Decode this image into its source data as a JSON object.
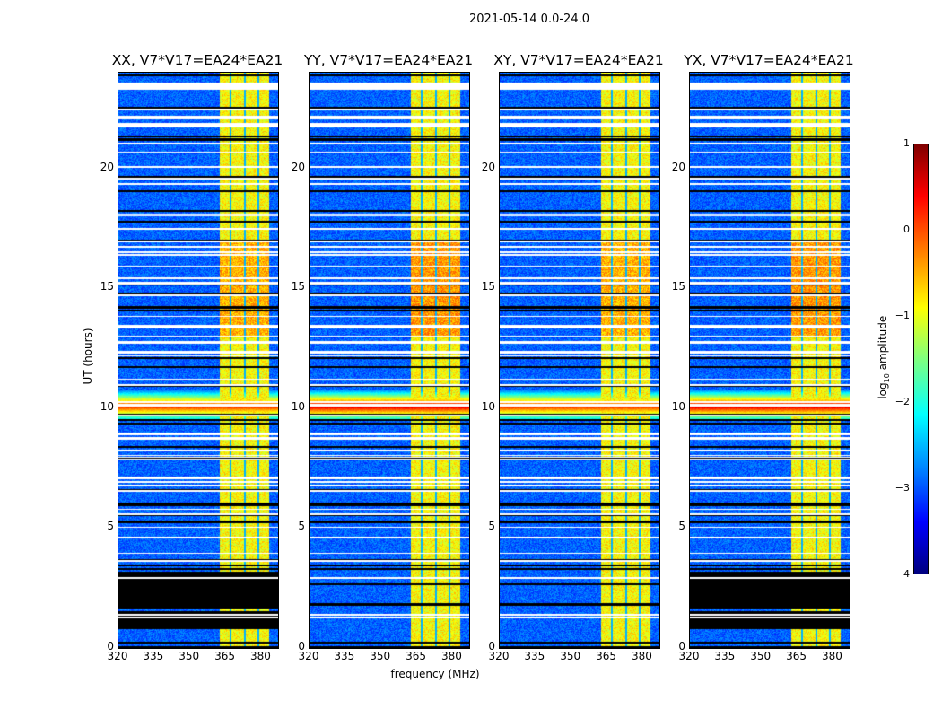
{
  "chart_data": {
    "type": "heatmap",
    "title": "2021-05-14 0.0-24.0",
    "xlabel": "frequency (MHz)",
    "ylabel": "UT (hours)",
    "xlim": [
      320,
      387
    ],
    "ylim": [
      0,
      24
    ],
    "xticks": [
      "320",
      "335",
      "350",
      "365",
      "380"
    ],
    "xtick_values": [
      320,
      335,
      350,
      365,
      380
    ],
    "yticks": [
      "0",
      "5",
      "10",
      "15",
      "20"
    ],
    "ytick_values": [
      0,
      5,
      10,
      15,
      20
    ],
    "panels": [
      {
        "title": "XX, V7*V17=EA24*EA21",
        "flag_block_hours": [
          0.8,
          3.2
        ],
        "rfi_strength": 0.75
      },
      {
        "title": "YY, V7*V17=EA24*EA21",
        "flag_block_hours": null,
        "rfi_strength": 1.0
      },
      {
        "title": "XY, V7*V17=EA24*EA21",
        "flag_block_hours": null,
        "rfi_strength": 0.75
      },
      {
        "title": "YX, V7*V17=EA24*EA21",
        "flag_block_hours": [
          0.8,
          3.2
        ],
        "rfi_strength": 1.0
      }
    ],
    "features": {
      "bright_band_mhz": [
        362.5,
        383
      ],
      "band_gaps_mhz": [
        367,
        373,
        378.5
      ],
      "rfi_hours": [
        9.5,
        10.8
      ]
    },
    "colorbar": {
      "label": "log10 amplitude",
      "range": [
        -4,
        1
      ],
      "ticks": [
        "1",
        "0",
        "−1",
        "−2",
        "−3",
        "−4"
      ],
      "tick_values": [
        1,
        0,
        -1,
        -2,
        -3,
        -4
      ],
      "colormap": "jet"
    }
  }
}
